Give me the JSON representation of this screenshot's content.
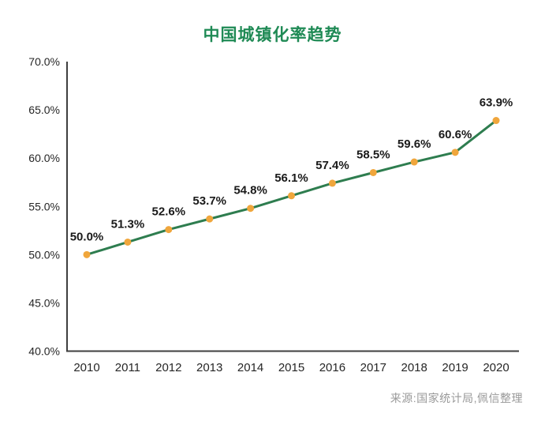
{
  "page": {
    "title": "中国城镇化率趋势",
    "source_note": "来源:国家统计局,佩信整理"
  },
  "colors": {
    "title_green": "#1F8A55",
    "line_green": "#2E7D4F",
    "marker_orange": "#F0A63C",
    "axis_gray": "#3F3F3F",
    "tick_text": "#262626",
    "data_label_text": "#1A1A1A",
    "source_gray": "#999999",
    "background": "#FFFFFF"
  },
  "chart_data": {
    "type": "line",
    "title": "中国城镇化率趋势",
    "categories": [
      "2010",
      "2011",
      "2012",
      "2013",
      "2014",
      "2015",
      "2016",
      "2017",
      "2018",
      "2019",
      "2020"
    ],
    "values": [
      50.0,
      51.3,
      52.6,
      53.7,
      54.8,
      56.1,
      57.4,
      58.5,
      59.6,
      60.6,
      63.9
    ],
    "point_labels": [
      "50.0%",
      "51.3%",
      "52.6%",
      "53.7%",
      "54.8%",
      "56.1%",
      "57.4%",
      "58.5%",
      "59.6%",
      "60.6%",
      "63.9%"
    ],
    "xlabel": "",
    "ylabel": "",
    "ylim": [
      40,
      70
    ],
    "ytick_step": 5,
    "ytick_labels": [
      "40.0%",
      "45.0%",
      "50.0%",
      "55.0%",
      "60.0%",
      "65.0%",
      "70.0%"
    ],
    "grid": false,
    "legend": "none",
    "marker": "circle",
    "source": "来源:国家统计局,佩信整理"
  }
}
